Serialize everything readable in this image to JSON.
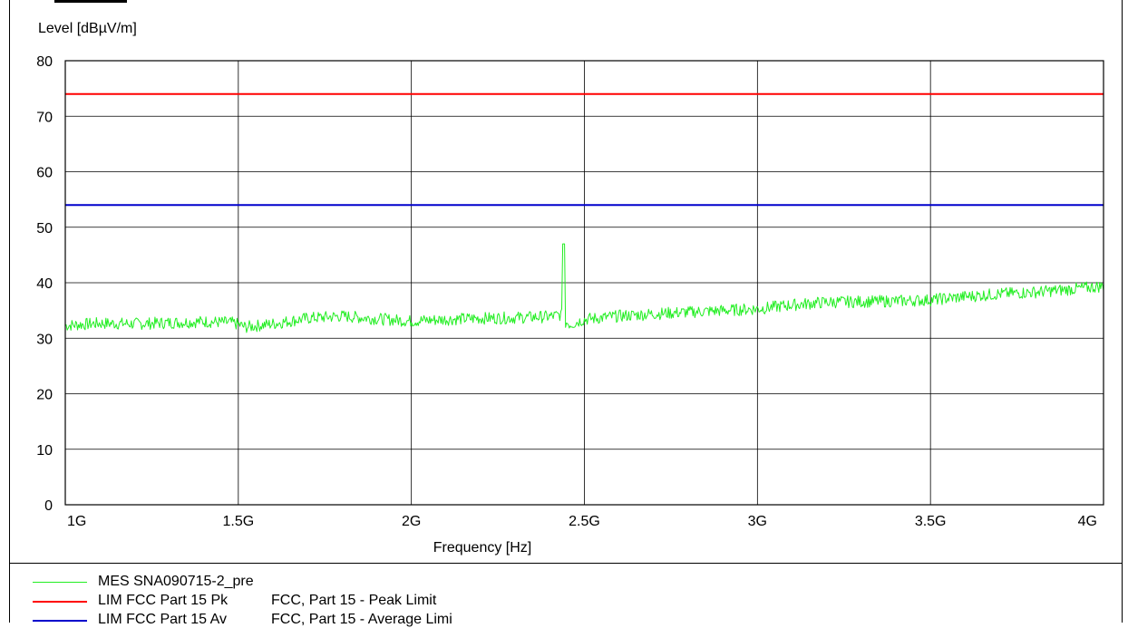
{
  "chart_data": {
    "type": "line",
    "ylabel": "Level [dBµV/m]",
    "xlabel": "Frequency [Hz]",
    "ylim": [
      0,
      80
    ],
    "xlim": [
      1000000000,
      4000000000
    ],
    "y_ticks": [
      "0",
      "10",
      "20",
      "30",
      "40",
      "50",
      "60",
      "70",
      "80"
    ],
    "x_ticks": [
      {
        "value": 1000000000,
        "label": "1G"
      },
      {
        "value": 1500000000,
        "label": "1.5G"
      },
      {
        "value": 2000000000,
        "label": "2G"
      },
      {
        "value": 2500000000,
        "label": "2.5G"
      },
      {
        "value": 3000000000,
        "label": "3G"
      },
      {
        "value": 3500000000,
        "label": "3.5G"
      },
      {
        "value": 4000000000,
        "label": "4G"
      }
    ],
    "grid": true,
    "legend_placement": "bottom",
    "series": [
      {
        "name": "MES  SNA090715-2_pre",
        "color": "#22ee22",
        "x": [
          1000000000,
          1100000000,
          1200000000,
          1300000000,
          1400000000,
          1480000000,
          1500000000,
          1520000000,
          1600000000,
          1700000000,
          1800000000,
          1900000000,
          2000000000,
          2100000000,
          2200000000,
          2300000000,
          2400000000,
          2430000000,
          2440000000,
          2450000000,
          2460000000,
          2500000000,
          2600000000,
          2700000000,
          2800000000,
          2900000000,
          3000000000,
          3100000000,
          3200000000,
          3300000000,
          3400000000,
          3500000000,
          3600000000,
          3700000000,
          3800000000,
          3900000000,
          4000000000
        ],
        "values": [
          32.3,
          32.7,
          32.6,
          32.8,
          33.0,
          32.8,
          32.5,
          32.0,
          32.6,
          33.6,
          34.0,
          33.5,
          33.1,
          33.4,
          33.6,
          33.7,
          33.9,
          34.2,
          47.0,
          32.8,
          32.5,
          33.4,
          34.0,
          34.4,
          34.7,
          35.0,
          35.3,
          36.0,
          36.5,
          36.6,
          36.7,
          36.9,
          37.5,
          38.0,
          38.3,
          38.8,
          39.4
        ]
      },
      {
        "name": "LIM  FCC Part 15 Pk",
        "color": "#ff0000",
        "x": [
          1000000000,
          4000000000
        ],
        "values": [
          74,
          74
        ]
      },
      {
        "name": "LIM  FCC Part 15 Av",
        "color": "#0000cc",
        "x": [
          1000000000,
          4000000000
        ],
        "values": [
          54,
          54
        ]
      }
    ]
  },
  "legend": [
    {
      "code": "MES  SNA090715-2_pre",
      "desc": "",
      "color": "#22ee22"
    },
    {
      "code": "LIM  FCC Part 15 Pk",
      "desc": "FCC, Part 15 - Peak Limit",
      "color": "#ff0000"
    },
    {
      "code": "LIM  FCC Part 15 Av",
      "desc": "FCC, Part 15 - Average Limi",
      "color": "#0000cc"
    }
  ]
}
